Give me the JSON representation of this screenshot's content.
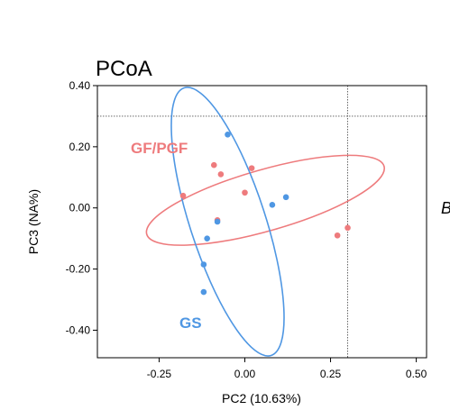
{
  "chart_data": {
    "type": "scatter",
    "title": "PCoA",
    "xlabel": "PC2 (10.63%)",
    "ylabel": "PC3 (NA%)",
    "xlim": [
      -0.43,
      0.53
    ],
    "ylim": [
      -0.49,
      0.4
    ],
    "xticks": [
      -0.25,
      0.0,
      0.25,
      0.5
    ],
    "xtick_labels": [
      "-0.25",
      "0.00",
      "0.25",
      "0.50"
    ],
    "yticks": [
      -0.4,
      -0.2,
      0.0,
      0.2,
      0.4
    ],
    "ytick_labels": [
      "-0.40",
      "-0.20",
      "0.00",
      "0.20",
      "0.40"
    ],
    "reference_lines": {
      "vertical_x": 0.3,
      "horizontal_y": 0.3
    },
    "grid": false,
    "series": [
      {
        "name": "GF/PGF",
        "color": "#ee7b7d",
        "points": [
          {
            "x": -0.18,
            "y": 0.04
          },
          {
            "x": -0.09,
            "y": 0.14
          },
          {
            "x": -0.07,
            "y": 0.11
          },
          {
            "x": -0.08,
            "y": -0.04
          },
          {
            "x": 0.0,
            "y": 0.05
          },
          {
            "x": 0.02,
            "y": 0.13
          },
          {
            "x": 0.27,
            "y": -0.09
          },
          {
            "x": 0.3,
            "y": -0.065
          }
        ],
        "ellipse": {
          "cx": 0.06,
          "cy": 0.025,
          "rx": 0.36,
          "ry": 0.1,
          "angle_deg": 16
        }
      },
      {
        "name": "GS",
        "color": "#4f97e3",
        "points": [
          {
            "x": -0.05,
            "y": 0.24
          },
          {
            "x": 0.12,
            "y": 0.035
          },
          {
            "x": 0.08,
            "y": 0.01
          },
          {
            "x": -0.08,
            "y": -0.045
          },
          {
            "x": -0.11,
            "y": -0.1
          },
          {
            "x": -0.12,
            "y": -0.185
          },
          {
            "x": -0.12,
            "y": -0.275
          }
        ],
        "ellipse": {
          "cx": -0.05,
          "cy": -0.045,
          "rx": 0.11,
          "ry": 0.46,
          "angle_deg": 18
        }
      }
    ]
  },
  "edge_glyph": "B"
}
